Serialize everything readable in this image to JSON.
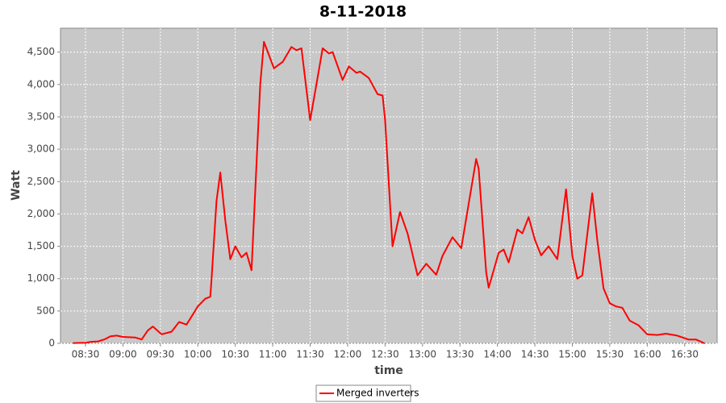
{
  "chart_data": {
    "type": "line",
    "title": "8-11-2018",
    "x_label": "time",
    "y_label": "Watt",
    "x": [
      "08:20",
      "08:30",
      "08:35",
      "08:40",
      "08:45",
      "08:50",
      "08:55",
      "09:00",
      "09:05",
      "09:10",
      "09:15",
      "09:20",
      "09:24",
      "09:31",
      "09:39",
      "09:45",
      "09:51",
      "10:00",
      "10:06",
      "10:10",
      "10:11",
      "10:15",
      "10:18",
      "10:22",
      "10:26",
      "10:30",
      "10:35",
      "10:39",
      "10:43",
      "10:50",
      "10:53",
      "11:01",
      "11:08",
      "11:15",
      "11:19",
      "11:23",
      "11:30",
      "11:35",
      "11:40",
      "11:45",
      "11:48",
      "11:56",
      "12:01",
      "12:07",
      "12:10",
      "12:17",
      "12:24",
      "12:28",
      "12:30",
      "12:36",
      "12:42",
      "12:48",
      "12:56",
      "13:03",
      "13:11",
      "13:16",
      "13:24",
      "13:31",
      "13:43",
      "13:45",
      "13:51",
      "13:53",
      "14:01",
      "14:05",
      "14:09",
      "14:16",
      "14:20",
      "14:25",
      "14:30",
      "14:35",
      "14:41",
      "14:48",
      "14:55",
      "15:00",
      "15:04",
      "15:08",
      "15:16",
      "15:20",
      "15:25",
      "15:30",
      "15:35",
      "15:40",
      "15:46",
      "15:53",
      "16:00",
      "16:08",
      "16:15",
      "16:24",
      "16:33",
      "16:39",
      "16:46"
    ],
    "series": [
      {
        "name": "Merged inverters",
        "color": "#ff0000",
        "values": [
          5,
          10,
          25,
          30,
          60,
          110,
          120,
          100,
          95,
          90,
          60,
          200,
          260,
          140,
          180,
          330,
          290,
          570,
          690,
          720,
          1000,
          2200,
          2640,
          1900,
          1300,
          1500,
          1330,
          1400,
          1130,
          4000,
          4660,
          4250,
          4350,
          4580,
          4530,
          4560,
          3450,
          4000,
          4560,
          4480,
          4500,
          4070,
          4280,
          4180,
          4200,
          4100,
          3850,
          3830,
          3450,
          1500,
          2030,
          1700,
          1050,
          1230,
          1060,
          1350,
          1640,
          1470,
          2850,
          2700,
          1100,
          860,
          1400,
          1450,
          1250,
          1760,
          1700,
          1950,
          1600,
          1360,
          1500,
          1300,
          2380,
          1350,
          1000,
          1050,
          2320,
          1600,
          850,
          620,
          570,
          550,
          350,
          280,
          140,
          130,
          150,
          120,
          60,
          60,
          0
        ]
      }
    ],
    "xlim": [
      "08:10",
      "16:56"
    ],
    "xticks": [
      "08:30",
      "09:00",
      "09:30",
      "10:00",
      "10:30",
      "11:00",
      "11:30",
      "12:00",
      "12:30",
      "13:00",
      "13:30",
      "14:00",
      "14:30",
      "15:00",
      "15:30",
      "16:00",
      "16:30"
    ],
    "ylim": [
      0,
      4870
    ],
    "yticks": [
      0,
      500,
      {
        "value": 1000,
        "label": "1,000"
      },
      {
        "value": 1500,
        "label": "1,500"
      },
      {
        "value": 2000,
        "label": "2,000"
      },
      {
        "value": 2500,
        "label": "2,500"
      },
      {
        "value": 3000,
        "label": "3,000"
      },
      {
        "value": 3500,
        "label": "3,500"
      },
      {
        "value": 4000,
        "label": "4,000"
      },
      {
        "value": 4500,
        "label": "4,500"
      }
    ],
    "grid": true
  }
}
